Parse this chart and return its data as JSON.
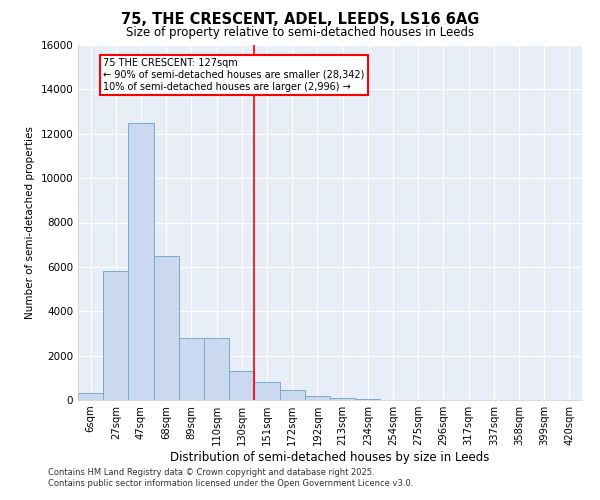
{
  "title_line1": "75, THE CRESCENT, ADEL, LEEDS, LS16 6AG",
  "title_line2": "Size of property relative to semi-detached houses in Leeds",
  "xlabel": "Distribution of semi-detached houses by size in Leeds",
  "ylabel": "Number of semi-detached properties",
  "categories": [
    "6sqm",
    "27sqm",
    "47sqm",
    "68sqm",
    "89sqm",
    "110sqm",
    "130sqm",
    "151sqm",
    "172sqm",
    "192sqm",
    "213sqm",
    "234sqm",
    "254sqm",
    "275sqm",
    "296sqm",
    "317sqm",
    "337sqm",
    "358sqm",
    "399sqm",
    "420sqm"
  ],
  "values": [
    300,
    5800,
    12500,
    6500,
    2800,
    2800,
    1300,
    800,
    450,
    200,
    100,
    50,
    20,
    10,
    5,
    3,
    1,
    1,
    0,
    0
  ],
  "bar_color": "#cad9f0",
  "bar_edge_color": "#7aaad0",
  "red_line_x": 6.5,
  "red_line_label": "75 THE CRESCENT: 127sqm",
  "annotation_smaller": "← 90% of semi-detached houses are smaller (28,342)",
  "annotation_larger": "10% of semi-detached houses are larger (2,996) →",
  "ylim": [
    0,
    16000
  ],
  "yticks": [
    0,
    2000,
    4000,
    6000,
    8000,
    10000,
    12000,
    14000,
    16000
  ],
  "bg_color": "#e8eef8",
  "footer_line1": "Contains HM Land Registry data © Crown copyright and database right 2025.",
  "footer_line2": "Contains public sector information licensed under the Open Government Licence v3.0."
}
